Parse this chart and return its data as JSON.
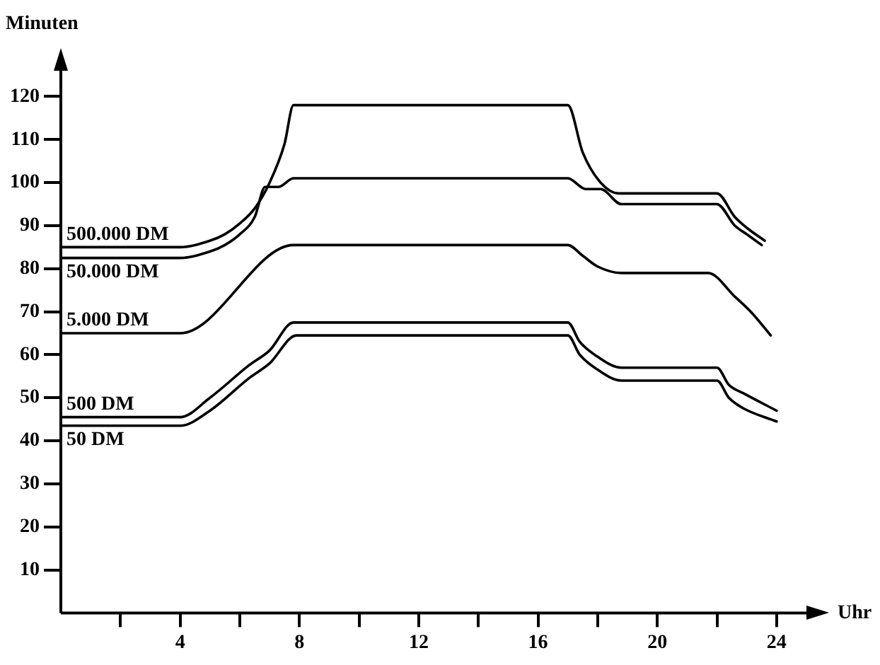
{
  "chart_data": {
    "type": "line",
    "xlabel": "Uhr",
    "ylabel": "Minuten",
    "xlim": [
      0,
      25
    ],
    "ylim": [
      0,
      126
    ],
    "xticks": [
      {
        "value": 2,
        "label": null
      },
      4,
      {
        "value": 6,
        "label": null
      },
      8,
      {
        "value": 10,
        "label": null
      },
      12,
      {
        "value": 14,
        "label": null
      },
      16,
      {
        "value": 18,
        "label": null
      },
      20,
      {
        "value": 22,
        "label": null
      },
      24
    ],
    "yticks": [
      10,
      20,
      30,
      40,
      50,
      60,
      70,
      80,
      90,
      100,
      110,
      120
    ],
    "grid": false,
    "legend": false,
    "marker": "none",
    "line_style": "solid",
    "series": [
      {
        "name": "500.000 DM",
        "color": "#000000",
        "x": [
          0,
          4,
          5,
          5.5,
          6,
          6.5,
          7,
          7.5,
          7.8,
          17,
          17.5,
          18.1,
          18.7,
          22,
          22.6,
          23,
          23.6
        ],
        "values": [
          85,
          85,
          86.5,
          88,
          90.5,
          94,
          100,
          109,
          118,
          118,
          107,
          100,
          97.5,
          97.5,
          92,
          89.5,
          86.5
        ]
      },
      {
        "name": "50.000 DM",
        "color": "#000000",
        "x": [
          0,
          4,
          5,
          5.5,
          6,
          6.5,
          6.85,
          7.3,
          7.8,
          17,
          17.6,
          18.1,
          18.8,
          22,
          22.6,
          23,
          23.5
        ],
        "values": [
          82.5,
          82.5,
          84,
          85.5,
          88,
          92,
          99,
          99,
          101,
          101,
          98.5,
          98.5,
          95,
          95,
          90,
          88,
          85.5
        ]
      },
      {
        "name": "5.000 DM",
        "color": "#000000",
        "x": [
          0,
          4,
          7.8,
          17,
          17.5,
          18,
          18.8,
          21.7,
          22.6,
          23.2,
          23.8
        ],
        "values": [
          65,
          65,
          85.5,
          85.5,
          83,
          80.5,
          79,
          79,
          73.5,
          69.5,
          64.5
        ]
      },
      {
        "name": "500 DM",
        "color": "#000000",
        "x": [
          0,
          4,
          5,
          6.3,
          7,
          7.8,
          17,
          17.4,
          17.9,
          18.8,
          22,
          22.4,
          22.9,
          24
        ],
        "values": [
          45.5,
          45.5,
          50,
          57.5,
          61,
          67.5,
          67.5,
          63,
          60,
          57,
          57,
          53,
          51,
          47
        ]
      },
      {
        "name": "50 DM",
        "color": "#000000",
        "x": [
          0,
          4,
          5,
          6.3,
          7,
          7.9,
          17,
          17.4,
          17.9,
          18.8,
          22,
          22.4,
          22.9,
          24
        ],
        "values": [
          43.5,
          43.5,
          47,
          54.5,
          58,
          64.5,
          64.5,
          60,
          57,
          54,
          54,
          50,
          47.5,
          44.5
        ]
      }
    ]
  }
}
